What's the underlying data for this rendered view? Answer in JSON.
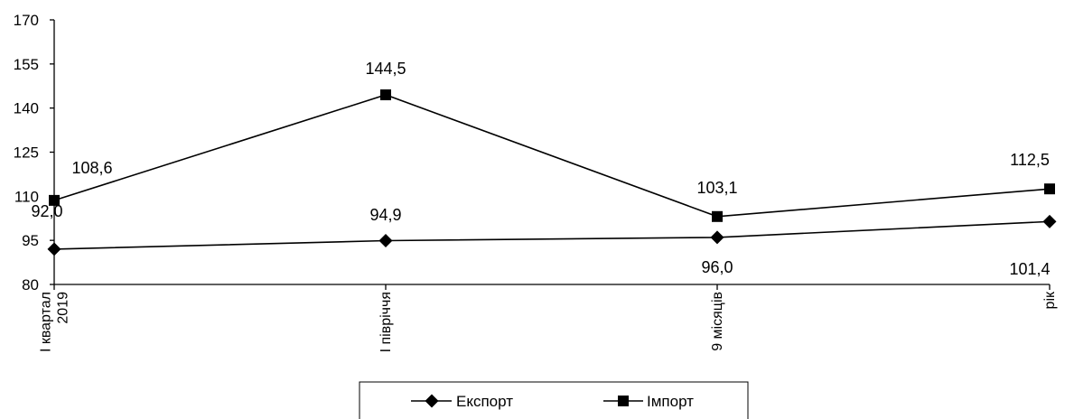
{
  "chart_data": {
    "type": "line",
    "title": "",
    "xlabel": "",
    "ylabel": "",
    "categories": [
      [
        "I квартал",
        "2019"
      ],
      [
        "I півріччя"
      ],
      [
        "9 місяців"
      ],
      [
        "рік"
      ]
    ],
    "yticks": [
      "80",
      "95",
      "110",
      "125",
      "140",
      "155",
      "170"
    ],
    "ylim": [
      80,
      170
    ],
    "grid": false,
    "legend_position": "bottom",
    "series": [
      {
        "name": "Експорт",
        "marker": "diamond",
        "color": "#000000",
        "values": [
          92.0,
          94.9,
          96.0,
          101.4
        ],
        "labels": [
          "92,0",
          "94,9",
          "96,0",
          "101,4"
        ]
      },
      {
        "name": "Імпорт",
        "marker": "square",
        "color": "#000000",
        "values": [
          108.6,
          144.5,
          103.1,
          112.5
        ],
        "labels": [
          "108,6",
          "144,5",
          "103,1",
          "112,5"
        ]
      }
    ]
  }
}
